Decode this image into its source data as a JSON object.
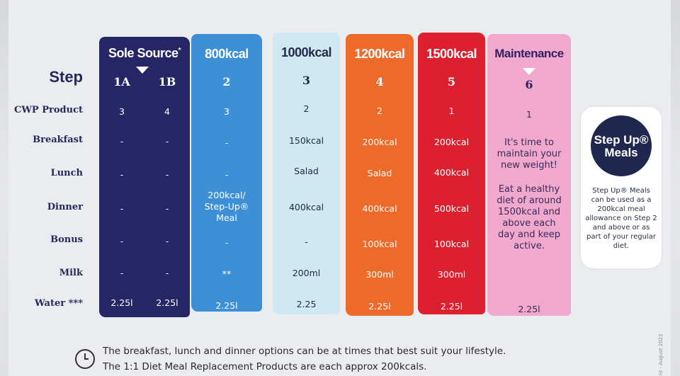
{
  "row_labels": {
    "step": "Step",
    "product": "CWP Product",
    "breakfast": "Breakfast",
    "lunch": "Lunch",
    "dinner": "Dinner",
    "bonus": "Bonus",
    "milk": "Milk",
    "water": "Water ***"
  },
  "plan1": {
    "title": "Sole Source",
    "title_mark": "*",
    "color": "#262566",
    "a": {
      "step": "1A",
      "product": "3",
      "breakfast": "-",
      "lunch": "-",
      "dinner": "-",
      "bonus": "-",
      "milk": "-",
      "water": "2.25l"
    },
    "b": {
      "step": "1B",
      "product": "4",
      "breakfast": "-",
      "lunch": "-",
      "dinner": "-",
      "bonus": "-",
      "milk": "-",
      "water": "2.25l"
    }
  },
  "plan2": {
    "title": "800kcal",
    "step": "2",
    "product": "3",
    "breakfast": "-",
    "lunch": "-",
    "dinner": "200kcal/ Step-Up® Meal",
    "bonus": "-",
    "milk": "**",
    "water": "2.25l",
    "color": "#3d8fd6"
  },
  "plan3": {
    "title": "1000kcal",
    "step": "3",
    "product": "2",
    "breakfast": "150kcal",
    "lunch": "Salad",
    "dinner": "400kcal",
    "bonus": "-",
    "milk": "200ml",
    "water": "2.25",
    "color": "#cfe8f2"
  },
  "plan4": {
    "title": "1200kcal",
    "step": "4",
    "product": "2",
    "breakfast": "200kcal",
    "lunch": "Salad",
    "dinner": "400kcal",
    "bonus": "100kcal",
    "milk": "300ml",
    "water": "2.25l",
    "color": "#ee6a2a"
  },
  "plan5": {
    "title": "1500kcal",
    "step": "5",
    "product": "1",
    "breakfast": "200kcal",
    "lunch": "400kcal",
    "dinner": "500kcal",
    "bonus": "100kcal",
    "milk": "300ml",
    "water": "2.25l",
    "color": "#dc2030"
  },
  "plan6": {
    "title": "Maintenance",
    "step": "6",
    "product": "1",
    "message1": "It's time to maintain your new weight!",
    "message2": "Eat a healthy diet of around 1500kcal and above each day and keep active.",
    "water": "2.25l",
    "color": "#f0a9cc"
  },
  "stepup": {
    "logo_line1": "Step Up®",
    "logo_line2": "Meals",
    "description": "Step Up® Meals can be used as a 200kcal meal allowance on Step 2 and above or as part of your regular diet."
  },
  "footer": {
    "line1": "The breakfast, lunch and dinner options can be at times that best suit your lifestyle.",
    "line2": "The 1:1 Diet Meal Replacement Products are each approx 200kcals."
  },
  "side_note": "nt - August 2022"
}
